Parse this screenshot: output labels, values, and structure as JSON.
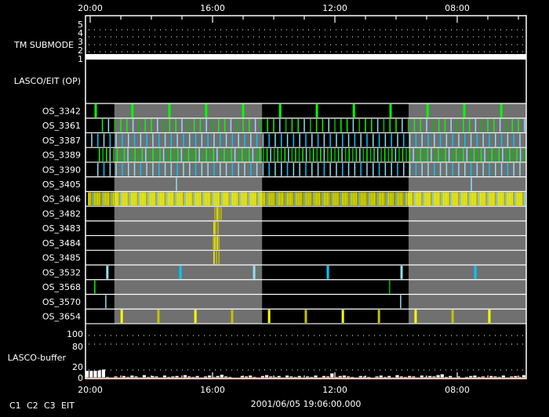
{
  "chart_data": {
    "type": "timeline",
    "title_date": "2001/06/05 19:06:00.000",
    "time_axis": {
      "direction": "decreasing-left-to-right",
      "range_hours": [
        20.15,
        5.74
      ],
      "tick_labels": [
        {
          "h": 20,
          "label": "20:00"
        },
        {
          "h": 16,
          "label": "16:00"
        },
        {
          "h": 12,
          "label": "12:00"
        },
        {
          "h": 8,
          "label": "08:00"
        }
      ],
      "minor_tick_hours": 1
    },
    "shaded_intervals": [
      [
        19.21,
        14.38
      ],
      [
        9.59,
        5.74
      ]
    ],
    "tm_submode": {
      "label": "TM SUBMODE",
      "levels": [
        "1",
        "2",
        "3",
        "4",
        "5"
      ],
      "value": 1
    },
    "section_label": "LASCO/EIT (OP)",
    "colors": {
      "c1": "#ff2020",
      "c2": "#00ff00",
      "c2_dark": "#00c000",
      "c3": "#00c8ff",
      "c3_light": "#90e0f0",
      "eit": "#ffff00",
      "eit_dark": "#c8c000",
      "shade": "#707070"
    },
    "rows": [
      {
        "name": "OS_3342",
        "events": [
          [
            19.82,
            "c2"
          ],
          [
            18.62,
            "c2"
          ],
          [
            17.41,
            "c2"
          ],
          [
            16.21,
            "c2"
          ],
          [
            15.0,
            "c2"
          ],
          [
            13.79,
            "c2"
          ],
          [
            12.59,
            "c2"
          ],
          [
            11.38,
            "c2"
          ],
          [
            10.18,
            "c2"
          ],
          [
            8.97,
            "c2"
          ],
          [
            7.77,
            "c2"
          ],
          [
            6.56,
            "c2"
          ]
        ]
      },
      {
        "name": "OS_3361",
        "pattern": {
          "start_h": 19.6,
          "interval_min": 12,
          "colors": [
            "c2",
            "c3_light",
            "c2_dark",
            "c2"
          ]
        }
      },
      {
        "name": "OS_3387",
        "pattern": {
          "start_h": 19.95,
          "interval_min": 12,
          "colors": [
            "c3_light",
            "c3",
            "c3_light",
            "c3"
          ]
        }
      },
      {
        "name": "OS_3389",
        "pattern": {
          "start_h": 19.7,
          "interval_min": 7,
          "colors": [
            "c2",
            "c2_dark",
            "c2",
            "c3_light",
            "c2_dark"
          ]
        }
      },
      {
        "name": "OS_3390",
        "pattern": {
          "start_h": 19.75,
          "interval_min": 12,
          "colors": [
            "c3_light",
            "c3",
            "c3_light"
          ]
        }
      },
      {
        "name": "OS_3405",
        "events": [
          [
            17.18,
            "c3_light"
          ],
          [
            7.54,
            "c3_light"
          ]
        ]
      },
      {
        "name": "OS_3406",
        "pattern": {
          "start_h": 20.05,
          "interval_min": 3,
          "colors": [
            "eit",
            "eit",
            "eit_dark",
            "c3_light",
            "eit",
            "eit"
          ]
        }
      },
      {
        "name": "OS_3482",
        "events": [
          [
            15.92,
            "eit_dark"
          ],
          [
            15.85,
            "eit"
          ],
          [
            15.79,
            "eit_dark"
          ],
          [
            15.72,
            "eit_dark"
          ]
        ]
      },
      {
        "name": "OS_3483",
        "events": [
          [
            15.95,
            "eit"
          ],
          [
            15.9,
            "eit_dark"
          ],
          [
            15.82,
            "eit_dark"
          ]
        ]
      },
      {
        "name": "OS_3484",
        "events": [
          [
            15.97,
            "eit_dark"
          ],
          [
            15.92,
            "eit"
          ],
          [
            15.85,
            "eit"
          ],
          [
            15.79,
            "eit_dark"
          ]
        ]
      },
      {
        "name": "OS_3485",
        "events": [
          [
            15.95,
            "eit"
          ],
          [
            15.87,
            "eit_dark"
          ],
          [
            15.79,
            "eit_dark"
          ]
        ]
      },
      {
        "name": "OS_3532",
        "events": [
          [
            19.44,
            "c3_light"
          ],
          [
            17.05,
            "c3"
          ],
          [
            14.64,
            "c3_light"
          ],
          [
            12.23,
            "c3"
          ],
          [
            9.82,
            "c3_light"
          ],
          [
            7.41,
            "c3"
          ]
        ]
      },
      {
        "name": "OS_3568",
        "events": [
          [
            19.85,
            "c2"
          ],
          [
            10.21,
            "c2_dark"
          ]
        ]
      },
      {
        "name": "OS_3570",
        "events": [
          [
            19.49,
            "c3_light"
          ],
          [
            9.85,
            "c3_light"
          ]
        ]
      },
      {
        "name": "OS_3654",
        "events": [
          [
            18.97,
            "eit"
          ],
          [
            17.77,
            "eit_dark"
          ],
          [
            16.56,
            "eit"
          ],
          [
            15.36,
            "eit_dark"
          ],
          [
            14.15,
            "eit"
          ],
          [
            12.95,
            "eit_dark"
          ],
          [
            11.74,
            "eit"
          ],
          [
            10.56,
            "eit_dark"
          ],
          [
            9.36,
            "eit"
          ],
          [
            8.15,
            "eit_dark"
          ],
          [
            6.95,
            "eit"
          ]
        ]
      }
    ],
    "buffer": {
      "label": "LASCO-buffer",
      "ylim": [
        0,
        100
      ],
      "tick_labels": [
        "0",
        "20",
        "80",
        "100"
      ],
      "grid_values": [
        20,
        80,
        100
      ],
      "values": [
        18,
        18,
        18,
        19,
        21,
        4,
        3,
        5,
        3,
        6,
        4,
        7,
        5,
        3,
        8,
        4,
        6,
        5,
        3,
        7,
        4,
        5,
        6,
        3,
        8,
        5,
        4,
        6,
        3,
        5,
        7,
        4,
        6,
        9,
        5,
        4,
        2,
        1,
        6,
        5,
        7,
        4,
        3,
        6,
        8,
        5,
        4,
        6,
        3,
        7,
        5,
        4,
        6,
        3,
        5,
        4,
        7,
        3,
        6,
        5,
        12,
        4,
        6,
        7,
        5,
        4,
        3,
        6,
        5,
        4,
        2,
        5,
        7,
        4,
        6,
        3,
        8,
        5,
        4,
        6,
        5,
        3,
        7,
        4,
        6,
        5,
        8,
        10,
        4,
        6,
        3,
        5,
        2,
        4,
        6,
        7,
        4,
        5,
        3,
        6,
        5,
        4,
        7,
        3,
        5,
        6,
        4,
        8
      ]
    },
    "legend": [
      {
        "label": "C1",
        "color": "#ff2020"
      },
      {
        "label": "C2",
        "color": "#00ff00"
      },
      {
        "label": "C3",
        "color": "#90e0f0"
      },
      {
        "label": "EIT",
        "color": "#ffff00"
      }
    ]
  }
}
